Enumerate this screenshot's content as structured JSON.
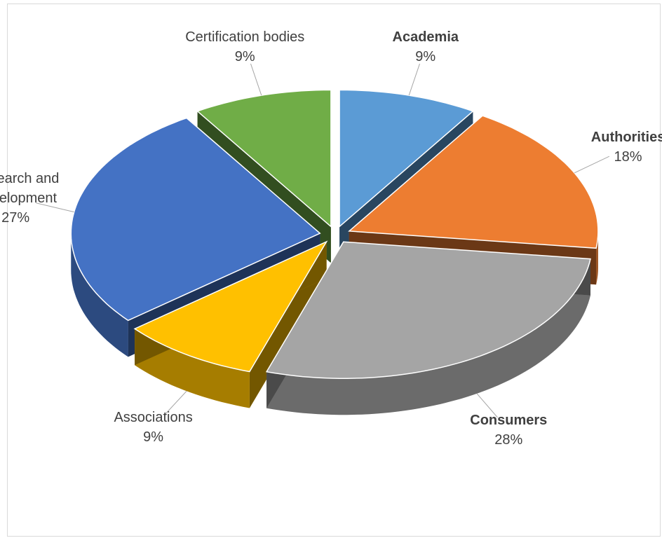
{
  "chart_data": {
    "type": "pie3d",
    "categories": [
      "Academia",
      "Authorities",
      "Consumers",
      "Associations",
      "Research and Development",
      "Certification bodies"
    ],
    "values": [
      9,
      18,
      28,
      9,
      27,
      9
    ],
    "value_labels": [
      "9%",
      "18%",
      "28%",
      "9%",
      "27%",
      "9%"
    ],
    "colors": [
      "#5b9bd5",
      "#ed7d31",
      "#a5a5a5",
      "#ffc000",
      "#4472c4",
      "#70ad47"
    ],
    "label_bold": [
      true,
      true,
      true,
      false,
      false,
      false
    ]
  }
}
